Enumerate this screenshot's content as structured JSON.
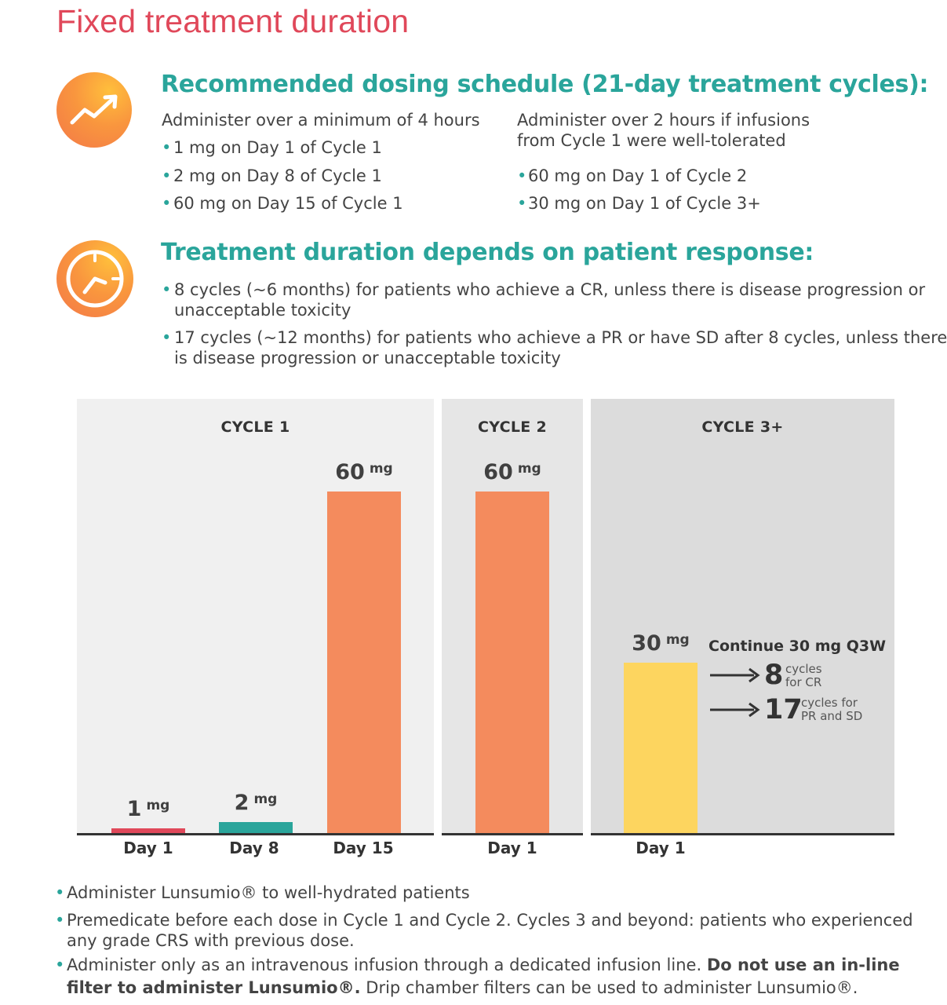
{
  "page_title": "Fixed treatment duration",
  "dosing": {
    "heading": "Recommended dosing schedule (21-day treatment cycles):",
    "left": {
      "intro": "Administer over a minimum of 4 hours",
      "items": [
        "1 mg on Day 1 of Cycle 1",
        "2 mg on Day 8 of Cycle 1",
        "60 mg on Day 15 of Cycle 1"
      ]
    },
    "right": {
      "intro_line1": "Administer over 2 hours if infusions",
      "intro_line2": "from Cycle 1 were well-tolerated",
      "items": [
        "60 mg on Day 1 of Cycle 2",
        "30 mg on Day 1 of Cycle 3+"
      ]
    }
  },
  "duration": {
    "heading": "Treatment duration depends on patient response:",
    "items": [
      {
        "line1": "8 cycles (~6 months) for patients who achieve a CR, unless there is disease progression or",
        "line2": "unacceptable toxicity"
      },
      {
        "line1": "17 cycles (~12 months) for patients who achieve a PR or have SD after 8 cycles, unless there",
        "line2": "is disease progression or unacceptable toxicity"
      }
    ]
  },
  "chart_data": {
    "type": "bar",
    "unit": "mg",
    "ylim": [
      0,
      60
    ],
    "panels": [
      {
        "label": "CYCLE 1",
        "bars": [
          {
            "day": "Day 1",
            "value": 1,
            "color": "#e0485a"
          },
          {
            "day": "Day 8",
            "value": 2,
            "color": "#2aa59b"
          },
          {
            "day": "Day 15",
            "value": 60,
            "color": "#f48b5d"
          }
        ]
      },
      {
        "label": "CYCLE 2",
        "bars": [
          {
            "day": "Day 1",
            "value": 60,
            "color": "#f48b5d"
          }
        ]
      },
      {
        "label": "CYCLE 3+",
        "bars": [
          {
            "day": "Day 1",
            "value": 30,
            "color": "#fdd55f"
          }
        ]
      }
    ],
    "annotation": {
      "title": "Continue 30 mg Q3W",
      "cr_count": "8",
      "cr_line1": "cycles",
      "cr_line2": "for CR",
      "pr_count": "17",
      "pr_line1": "cycles for",
      "pr_line2": "PR and SD"
    }
  },
  "notes": {
    "n1": "Administer Lunsumio® to well-hydrated patients",
    "n2_line1": "Premedicate before each dose in Cycle 1 and Cycle 2. Cycles 3 and beyond: patients who experienced",
    "n2_line2": "any grade CRS with previous dose.",
    "n3_a": "Administer only as an intravenous infusion through a dedicated infusion line.",
    "n3_b": "Do not use an in-line",
    "n3_c": "filter to administer Lunsumio®.",
    "n3_d": "Drip chamber filters can be used to administer Lunsumio®."
  },
  "colors": {
    "title": "#e0485a",
    "teal": "#2aa59b",
    "orange": "#f48b5d",
    "yellow": "#fdd55f",
    "red": "#e0485a"
  }
}
